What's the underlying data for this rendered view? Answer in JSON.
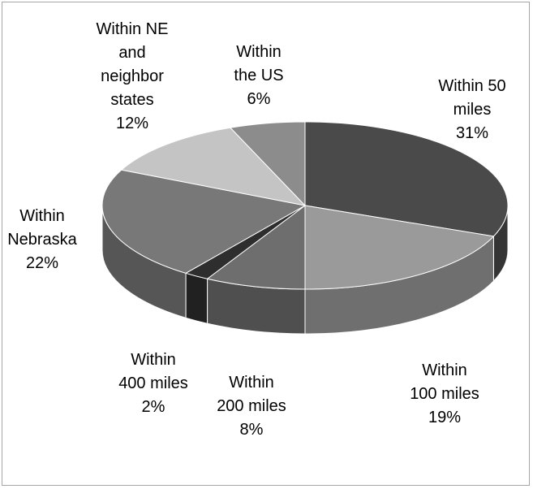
{
  "chart_data": {
    "type": "pie",
    "style": "3d",
    "title": "",
    "slices": [
      {
        "label_lines": [
          "Within 50",
          "miles"
        ],
        "percent_label": "31%",
        "value": 31,
        "color": "#4a4a4a"
      },
      {
        "label_lines": [
          "Within",
          "100 miles"
        ],
        "percent_label": "19%",
        "value": 19,
        "color": "#9a9a9a"
      },
      {
        "label_lines": [
          "Within",
          "200 miles"
        ],
        "percent_label": "8%",
        "value": 8,
        "color": "#6e6e6e"
      },
      {
        "label_lines": [
          "Within",
          "400 miles"
        ],
        "percent_label": "2%",
        "value": 2,
        "color": "#2e2e2e"
      },
      {
        "label_lines": [
          "Within",
          "Nebraska"
        ],
        "percent_label": "22%",
        "value": 22,
        "color": "#787878"
      },
      {
        "label_lines": [
          "Within NE",
          "and",
          "neighbor",
          "states"
        ],
        "percent_label": "12%",
        "value": 12,
        "color": "#c4c4c4"
      },
      {
        "label_lines": [
          "Within",
          "the US"
        ],
        "percent_label": "6%",
        "value": 6,
        "color": "#8c8c8c"
      }
    ]
  }
}
